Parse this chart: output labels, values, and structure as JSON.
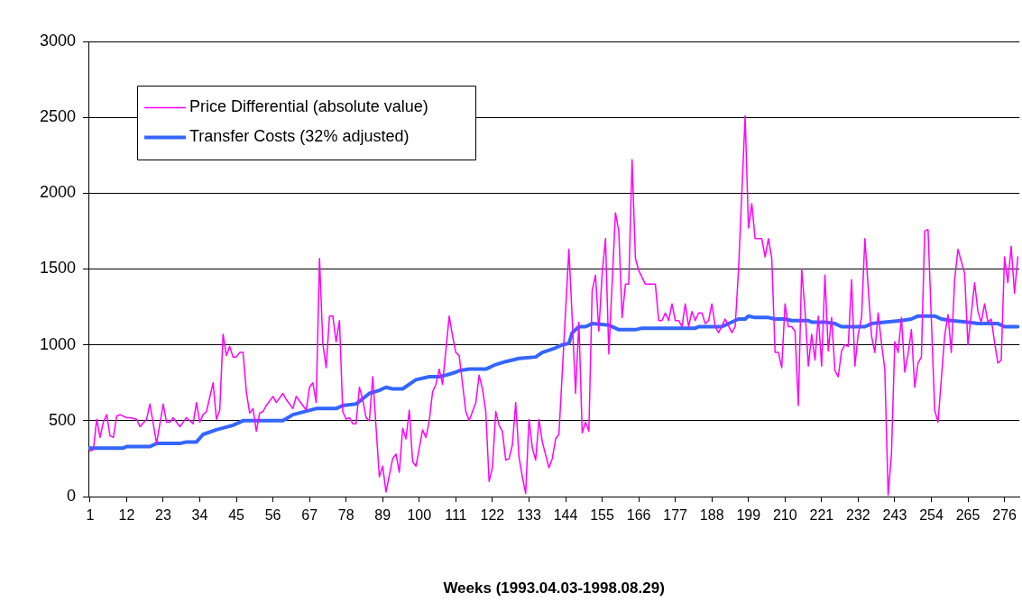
{
  "chart_data": {
    "type": "line",
    "xlabel": "Weeks (1993.04.03-1998.08.29)",
    "xlim": [
      0.5,
      280.5
    ],
    "xticks": [
      1,
      12,
      23,
      34,
      45,
      56,
      67,
      78,
      89,
      100,
      111,
      122,
      133,
      144,
      155,
      166,
      177,
      188,
      199,
      210,
      221,
      232,
      243,
      254,
      265,
      276
    ],
    "ylim": [
      0,
      3000
    ],
    "yticks": [
      0,
      500,
      1000,
      1500,
      2000,
      2500,
      3000
    ],
    "grid": "y",
    "legend": "top left",
    "marker": "none",
    "line_style": "solid",
    "series": [
      {
        "name": "Price Differential (absolute value)",
        "color": "#ff00ff",
        "x": [
          1,
          2,
          3,
          4,
          5,
          6,
          7,
          8,
          9,
          10,
          12,
          13,
          15,
          16,
          18,
          19,
          21,
          23,
          24,
          25,
          26,
          28,
          30,
          32,
          33,
          34,
          35,
          36,
          38,
          39,
          40,
          41,
          42,
          43,
          44,
          45,
          46,
          47,
          48,
          49,
          50,
          51,
          52,
          53,
          54,
          56,
          57,
          59,
          60,
          62,
          63,
          64,
          66,
          67,
          68,
          69,
          70,
          71,
          72,
          73,
          74,
          75,
          76,
          77,
          78,
          79,
          80,
          81,
          82,
          83,
          84,
          85,
          86,
          88,
          89,
          90,
          92,
          93,
          94,
          95,
          96,
          97,
          98,
          99,
          100,
          101,
          102,
          103,
          104,
          105,
          106,
          107,
          109,
          110,
          111,
          112,
          114,
          115,
          117,
          118,
          119,
          120,
          121,
          122,
          123,
          124,
          125,
          126,
          127,
          128,
          129,
          130,
          131,
          132,
          133,
          134,
          135,
          136,
          137,
          139,
          140,
          141,
          142,
          145,
          146,
          147,
          148,
          149,
          150,
          151,
          152,
          153,
          154,
          155,
          156,
          157,
          159,
          160,
          161,
          162,
          163,
          164,
          165,
          166,
          168,
          171,
          172,
          173,
          174,
          175,
          176,
          177,
          178,
          179,
          180,
          181,
          182,
          183,
          184,
          185,
          186,
          187,
          188,
          189,
          190,
          192,
          194,
          195,
          196,
          198,
          199,
          200,
          201,
          203,
          204,
          205,
          206,
          207,
          208,
          209,
          210,
          211,
          212,
          213,
          214,
          215,
          216,
          217,
          218,
          219,
          220,
          221,
          222,
          223,
          224,
          225,
          226,
          227,
          228,
          229,
          230,
          231,
          232,
          233,
          234,
          236,
          237,
          238,
          239,
          240,
          241,
          242,
          243,
          244,
          245,
          246,
          247,
          248,
          249,
          250,
          251,
          252,
          253,
          255,
          256,
          258,
          259,
          260,
          261,
          262,
          264,
          265,
          267,
          268,
          269,
          270,
          271,
          272,
          273,
          274,
          275,
          276,
          277,
          278,
          279,
          280
        ],
        "values": [
          300,
          310,
          510,
          390,
          490,
          540,
          400,
          390,
          530,
          540,
          520,
          520,
          510,
          460,
          510,
          610,
          350,
          610,
          490,
          490,
          520,
          460,
          520,
          480,
          620,
          490,
          540,
          560,
          750,
          510,
          570,
          1070,
          930,
          990,
          920,
          920,
          950,
          950,
          690,
          550,
          580,
          430,
          550,
          560,
          600,
          660,
          620,
          680,
          640,
          580,
          660,
          630,
          570,
          720,
          750,
          620,
          1570,
          1010,
          850,
          1190,
          1190,
          1020,
          1160,
          560,
          510,
          520,
          480,
          480,
          720,
          640,
          520,
          500,
          790,
          130,
          200,
          30,
          250,
          280,
          160,
          450,
          380,
          570,
          230,
          200,
          320,
          440,
          390,
          500,
          690,
          740,
          840,
          740,
          1190,
          1060,
          950,
          930,
          560,
          500,
          620,
          800,
          710,
          560,
          100,
          190,
          560,
          470,
          430,
          240,
          250,
          340,
          620,
          260,
          130,
          20,
          510,
          320,
          240,
          510,
          360,
          190,
          250,
          380,
          410,
          1630,
          1170,
          680,
          1150,
          420,
          490,
          430,
          1360,
          1460,
          1090,
          1470,
          1700,
          940,
          1870,
          1750,
          1180,
          1400,
          1400,
          2220,
          1570,
          1490,
          1400,
          1400,
          1160,
          1160,
          1210,
          1160,
          1270,
          1160,
          1160,
          1120,
          1270,
          1120,
          1220,
          1160,
          1210,
          1210,
          1140,
          1160,
          1270,
          1120,
          1080,
          1170,
          1080,
          1120,
          1490,
          2510,
          1770,
          1930,
          1700,
          1700,
          1580,
          1700,
          1570,
          950,
          950,
          850,
          1270,
          1120,
          1120,
          1090,
          600,
          1500,
          1230,
          860,
          1070,
          900,
          1190,
          860,
          1460,
          960,
          1180,
          830,
          790,
          960,
          1000,
          990,
          1430,
          860,
          1070,
          1180,
          1700,
          1060,
          950,
          1210,
          1010,
          840,
          10,
          280,
          1020,
          950,
          1180,
          820,
          940,
          1100,
          720,
          880,
          920,
          1750,
          1760,
          570,
          490,
          1060,
          1200,
          950,
          1430,
          1630,
          1470,
          1000,
          1410,
          1220,
          1150,
          1270,
          1150,
          1170,
          1020,
          880,
          900,
          1580,
          1410,
          1650,
          1340,
          1580
        ]
      },
      {
        "name": "Transfer Costs (32% adjusted)",
        "color": "#3366ff",
        "x": [
          1,
          11,
          12,
          19,
          21,
          28,
          30,
          33,
          35,
          39,
          44,
          47,
          50,
          59,
          62,
          69,
          75,
          77,
          81,
          85,
          88,
          90,
          92,
          95,
          99,
          103,
          106,
          108,
          111,
          112,
          115,
          120,
          123,
          126,
          130,
          135,
          137,
          141,
          143,
          145,
          146,
          148,
          150,
          152,
          157,
          160,
          165,
          167,
          183,
          184,
          191,
          196,
          198,
          199,
          201,
          205,
          207,
          210,
          212,
          217,
          218,
          222,
          225,
          227,
          234,
          236,
          240,
          245,
          248,
          250,
          255,
          257,
          260,
          265,
          268,
          271,
          274,
          276,
          280
        ],
        "values": [
          320,
          320,
          330,
          330,
          350,
          350,
          360,
          360,
          410,
          440,
          470,
          500,
          500,
          500,
          540,
          580,
          580,
          600,
          610,
          680,
          700,
          720,
          710,
          710,
          770,
          790,
          790,
          800,
          820,
          830,
          840,
          840,
          870,
          890,
          910,
          920,
          950,
          980,
          1000,
          1010,
          1080,
          1120,
          1120,
          1140,
          1130,
          1100,
          1100,
          1110,
          1110,
          1120,
          1120,
          1170,
          1170,
          1190,
          1180,
          1180,
          1170,
          1170,
          1160,
          1160,
          1150,
          1150,
          1140,
          1120,
          1120,
          1140,
          1150,
          1160,
          1170,
          1190,
          1190,
          1170,
          1160,
          1150,
          1140,
          1140,
          1140,
          1120,
          1120
        ]
      }
    ]
  }
}
